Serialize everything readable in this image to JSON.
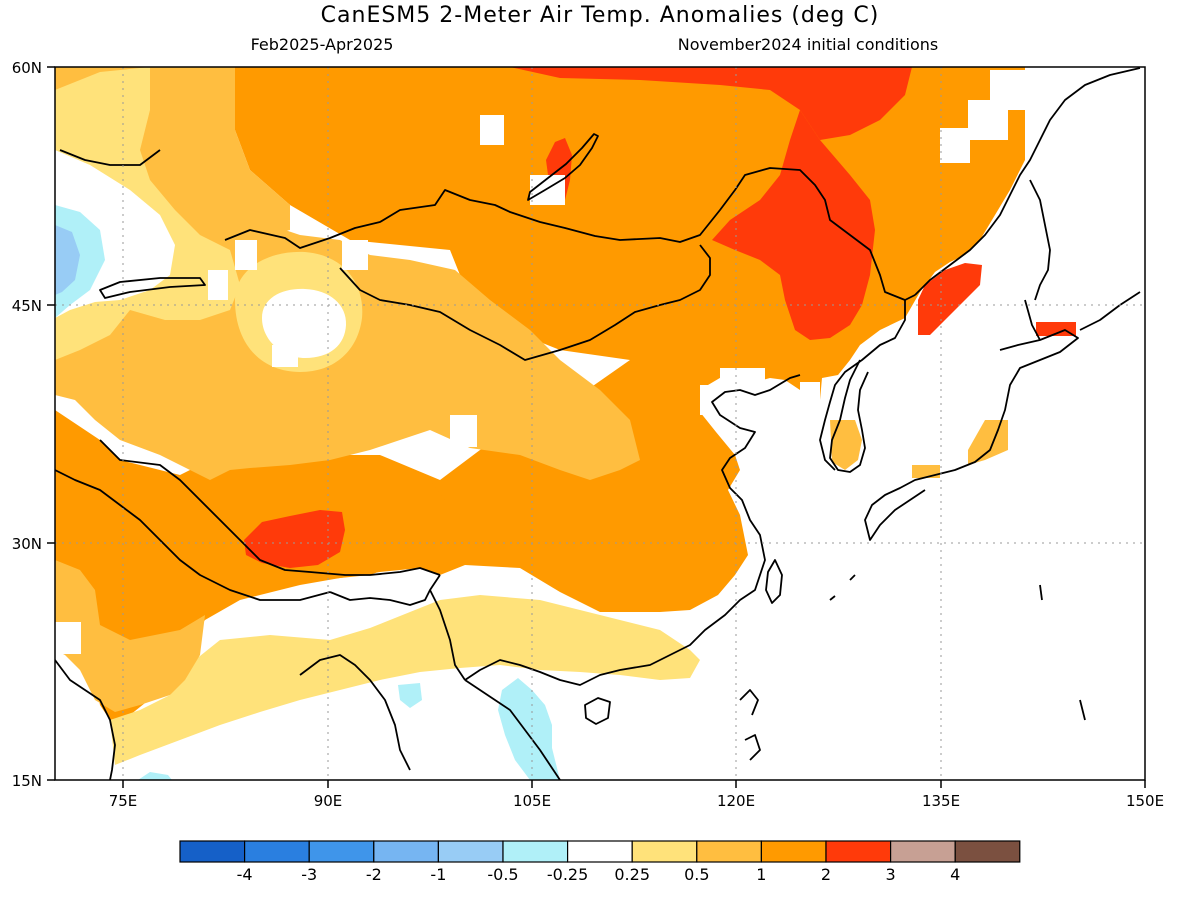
{
  "title": "CanESM5 2-Meter Air Temp. Anomalies (deg C)",
  "subtitle_left": "Feb2025-Apr2025",
  "subtitle_right": "November2024 initial conditions",
  "lat_labels": [
    "60N",
    "45N",
    "30N",
    "15N"
  ],
  "lon_labels": [
    "75E",
    "90E",
    "105E",
    "120E",
    "135E",
    "150E"
  ],
  "legend": {
    "colors": [
      "#1560c8",
      "#2a7fe0",
      "#3f95ea",
      "#76b5f2",
      "#98ccf5",
      "#b0f0f8",
      "#ffffff",
      "#ffe27a",
      "#ffbe40",
      "#ff9a00",
      "#ff3a0a",
      "#c7a094",
      "#7b5040"
    ],
    "labels": [
      "-4",
      "-3",
      "-2",
      "-1",
      "-0.5",
      "-0.25",
      "0.25",
      "0.5",
      "1",
      "2",
      "3",
      "4"
    ]
  }
}
